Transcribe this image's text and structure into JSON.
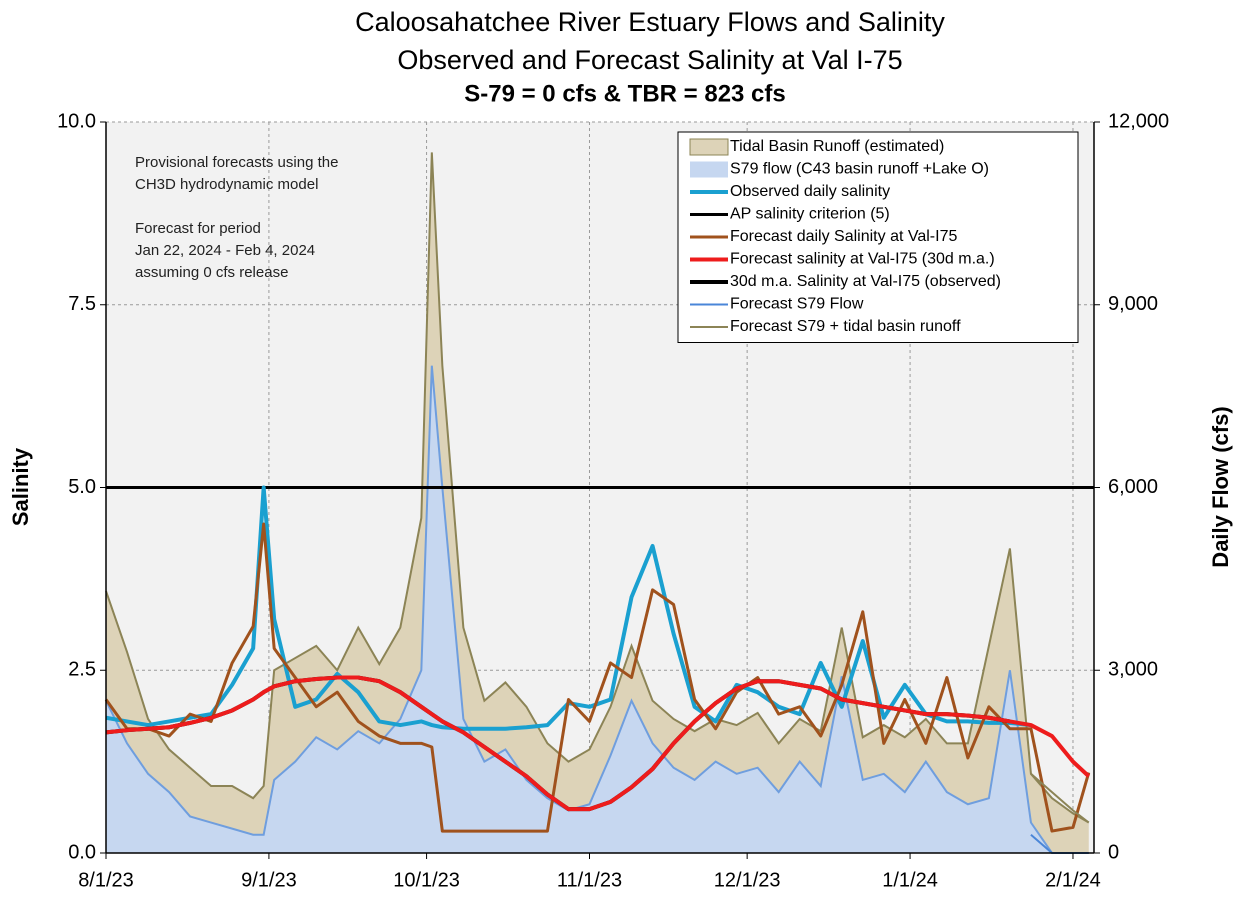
{
  "chart_data": {
    "type": "line",
    "title": "Caloosahatchee River Estuary Flows and Salinity",
    "subtitle": "Observed and Forecast Salinity at Val I-75",
    "subtitle2": "S-79 = 0 cfs & TBR =  823 cfs",
    "ylabel": "Salinity",
    "y2label": "Daily Flow (cfs)",
    "annotations": [
      "Provisional forecasts using the",
      "CH3D hydrodynamic model",
      "",
      "Forecast for period",
      "Jan 22, 2024 - Feb 4, 2024",
      "assuming 0 cfs release"
    ],
    "x": [
      "8/1/23",
      "8/5/23",
      "8/9/23",
      "8/13/23",
      "8/17/23",
      "8/21/23",
      "8/25/23",
      "8/29/23",
      "8/31/23",
      "9/2/23",
      "9/6/23",
      "9/10/23",
      "9/14/23",
      "9/18/23",
      "9/22/23",
      "9/26/23",
      "9/30/23",
      "10/2/23",
      "10/4/23",
      "10/8/23",
      "10/12/23",
      "10/16/23",
      "10/20/23",
      "10/24/23",
      "10/28/23",
      "11/1/23",
      "11/5/23",
      "11/9/23",
      "11/13/23",
      "11/17/23",
      "11/21/23",
      "11/25/23",
      "11/29/23",
      "12/3/23",
      "12/7/23",
      "12/11/23",
      "12/15/23",
      "12/19/23",
      "12/23/23",
      "12/27/23",
      "12/31/23",
      "1/4/24",
      "1/8/24",
      "1/12/24",
      "1/16/24",
      "1/20/24",
      "1/24/24",
      "1/28/24",
      "2/1/24",
      "2/4/24"
    ],
    "xlim": [
      "8/1/23",
      "2/5/24"
    ],
    "xticks": [
      "8/1/23",
      "9/1/23",
      "10/1/23",
      "11/1/23",
      "12/1/23",
      "1/1/24",
      "2/1/24"
    ],
    "ylim": [
      0,
      10
    ],
    "yticks": [
      {
        "value": 0,
        "label": "0.0"
      },
      {
        "value": 2.5,
        "label": "2.5"
      },
      {
        "value": 5,
        "label": "5.0"
      },
      {
        "value": 7.5,
        "label": "7.5"
      },
      {
        "value": 10,
        "label": "10.0"
      }
    ],
    "y2lim": [
      0,
      12000
    ],
    "y2ticks": [
      0,
      {
        "value": 3000,
        "label": "3,000"
      },
      {
        "value": 6000,
        "label": "6,000"
      },
      {
        "value": 9000,
        "label": "9,000"
      },
      {
        "value": 12000,
        "label": "12,000"
      }
    ],
    "grid": true,
    "legend": "upper right",
    "stack_areas": true,
    "reference_line": {
      "name": "AP salinity criterion (5)",
      "value": 5,
      "color": "#000000"
    },
    "series": [
      {
        "name": "Tidal Basin Runoff (estimated)",
        "kind": "area",
        "axis": "y2",
        "color": "#ddd3b8",
        "edge": "#8c8456",
        "values": [
          1800,
          1500,
          900,
          700,
          800,
          600,
          700,
          600,
          800,
          1800,
          1700,
          1500,
          1300,
          1700,
          1300,
          1500,
          2500,
          3500,
          2000,
          1500,
          1000,
          1100,
          1200,
          900,
          800,
          900,
          800,
          900,
          700,
          800,
          800,
          700,
          800,
          900,
          800,
          700,
          900,
          800,
          700,
          800,
          900,
          700,
          800,
          1000,
          2500,
          2000,
          800,
          900,
          650,
          500
        ]
      },
      {
        "name": "S79 flow (C43 basin runoff +Lake O)",
        "kind": "area",
        "axis": "y2",
        "color": "#c6d7f0",
        "edge": "#6f9ede",
        "values": [
          2500,
          1800,
          1300,
          1000,
          600,
          500,
          400,
          300,
          300,
          1200,
          1500,
          1900,
          1700,
          2000,
          1800,
          2200,
          3000,
          8000,
          6000,
          2200,
          1500,
          1700,
          1200,
          900,
          700,
          800,
          1600,
          2500,
          1800,
          1400,
          1200,
          1500,
          1300,
          1400,
          1000,
          1500,
          1100,
          2900,
          1200,
          1300,
          1000,
          1500,
          1000,
          800,
          900,
          3000,
          500,
          0,
          0,
          0
        ]
      },
      {
        "name": "Observed daily salinity",
        "kind": "line",
        "axis": "y",
        "color": "#1aa0d0",
        "width": 4,
        "values": [
          1.85,
          1.8,
          1.75,
          1.8,
          1.85,
          1.9,
          2.3,
          2.8,
          5.0,
          3.2,
          2.0,
          2.1,
          2.45,
          2.2,
          1.8,
          1.75,
          1.8,
          1.75,
          1.72,
          1.7,
          1.7,
          1.7,
          1.72,
          1.75,
          2.05,
          2.0,
          2.1,
          3.5,
          4.2,
          3.0,
          2.0,
          1.8,
          2.3,
          2.2,
          2.0,
          1.9,
          2.6,
          2.0,
          2.9,
          1.85,
          2.3,
          1.9,
          1.8,
          1.8,
          1.78,
          1.78,
          1.75,
          null,
          null,
          null
        ]
      },
      {
        "name": "Forecast daily Salinity at Val-I75",
        "kind": "line",
        "axis": "y",
        "color": "#a0521d",
        "width": 3,
        "values": [
          2.1,
          1.7,
          1.7,
          1.6,
          1.9,
          1.8,
          2.6,
          3.1,
          4.5,
          2.8,
          2.4,
          2.0,
          2.2,
          1.8,
          1.6,
          1.5,
          1.5,
          1.45,
          0.3,
          0.3,
          0.3,
          0.3,
          0.3,
          0.3,
          2.1,
          1.8,
          2.6,
          2.4,
          3.6,
          3.4,
          2.1,
          1.7,
          2.2,
          2.4,
          1.9,
          2.0,
          1.6,
          2.3,
          3.3,
          1.5,
          2.1,
          1.5,
          2.4,
          1.3,
          2.0,
          1.7,
          1.7,
          0.3,
          0.35,
          1.1
        ]
      },
      {
        "name": "30d m.a. Salinity at Val-I75 (observed)",
        "kind": "line",
        "axis": "y",
        "color": "#000000",
        "width": 4,
        "values": [
          1.65,
          1.68,
          1.7,
          1.72,
          1.78,
          1.85,
          1.95,
          2.1,
          2.2,
          2.28,
          2.35,
          2.38,
          2.4,
          2.4,
          2.35,
          2.2,
          2.0,
          1.9,
          1.8,
          1.65,
          1.45,
          1.25,
          1.05,
          0.8,
          0.6,
          0.6,
          0.7,
          0.9,
          1.15,
          1.5,
          1.8,
          2.05,
          2.25,
          2.35,
          2.35,
          2.3,
          2.25,
          2.1,
          2.05,
          2.0,
          1.95,
          1.9,
          1.9,
          1.88,
          1.85,
          1.8,
          null,
          null,
          null,
          null
        ]
      },
      {
        "name": "Forecast salinity at Val-I75 (30d m.a.)",
        "kind": "line",
        "axis": "y",
        "color": "#ee1c1c",
        "width": 4,
        "values": [
          1.65,
          1.68,
          1.7,
          1.72,
          1.78,
          1.85,
          1.95,
          2.1,
          2.2,
          2.28,
          2.35,
          2.38,
          2.4,
          2.4,
          2.35,
          2.2,
          2.0,
          1.9,
          1.8,
          1.65,
          1.45,
          1.25,
          1.05,
          0.8,
          0.6,
          0.6,
          0.7,
          0.9,
          1.15,
          1.5,
          1.8,
          2.05,
          2.25,
          2.35,
          2.35,
          2.3,
          2.25,
          2.1,
          2.05,
          2.0,
          1.95,
          1.9,
          1.9,
          1.88,
          1.85,
          1.8,
          1.75,
          1.6,
          1.25,
          1.05
        ]
      },
      {
        "name": "Forecast S79 Flow",
        "kind": "line",
        "axis": "y2",
        "color": "#4a86d8",
        "width": 2,
        "values": [
          null,
          null,
          null,
          null,
          null,
          null,
          null,
          null,
          null,
          null,
          null,
          null,
          null,
          null,
          null,
          null,
          null,
          null,
          null,
          null,
          null,
          null,
          null,
          null,
          null,
          null,
          null,
          null,
          null,
          null,
          null,
          null,
          null,
          null,
          null,
          null,
          null,
          null,
          null,
          null,
          null,
          null,
          null,
          null,
          null,
          null,
          300,
          0,
          0,
          0
        ]
      },
      {
        "name": "Forecast S79 + tidal basin runoff",
        "kind": "line",
        "axis": "y2",
        "color": "#8c8456",
        "width": 2,
        "values": [
          null,
          null,
          null,
          null,
          null,
          null,
          null,
          null,
          null,
          null,
          null,
          null,
          null,
          null,
          null,
          null,
          null,
          null,
          null,
          null,
          null,
          null,
          null,
          null,
          null,
          null,
          null,
          null,
          null,
          null,
          null,
          null,
          null,
          null,
          null,
          null,
          null,
          null,
          null,
          null,
          null,
          null,
          null,
          null,
          null,
          null,
          1300,
          1000,
          700,
          500
        ]
      }
    ],
    "legend_order": [
      0,
      1,
      2,
      "ref",
      3,
      5,
      4,
      6,
      7
    ]
  }
}
